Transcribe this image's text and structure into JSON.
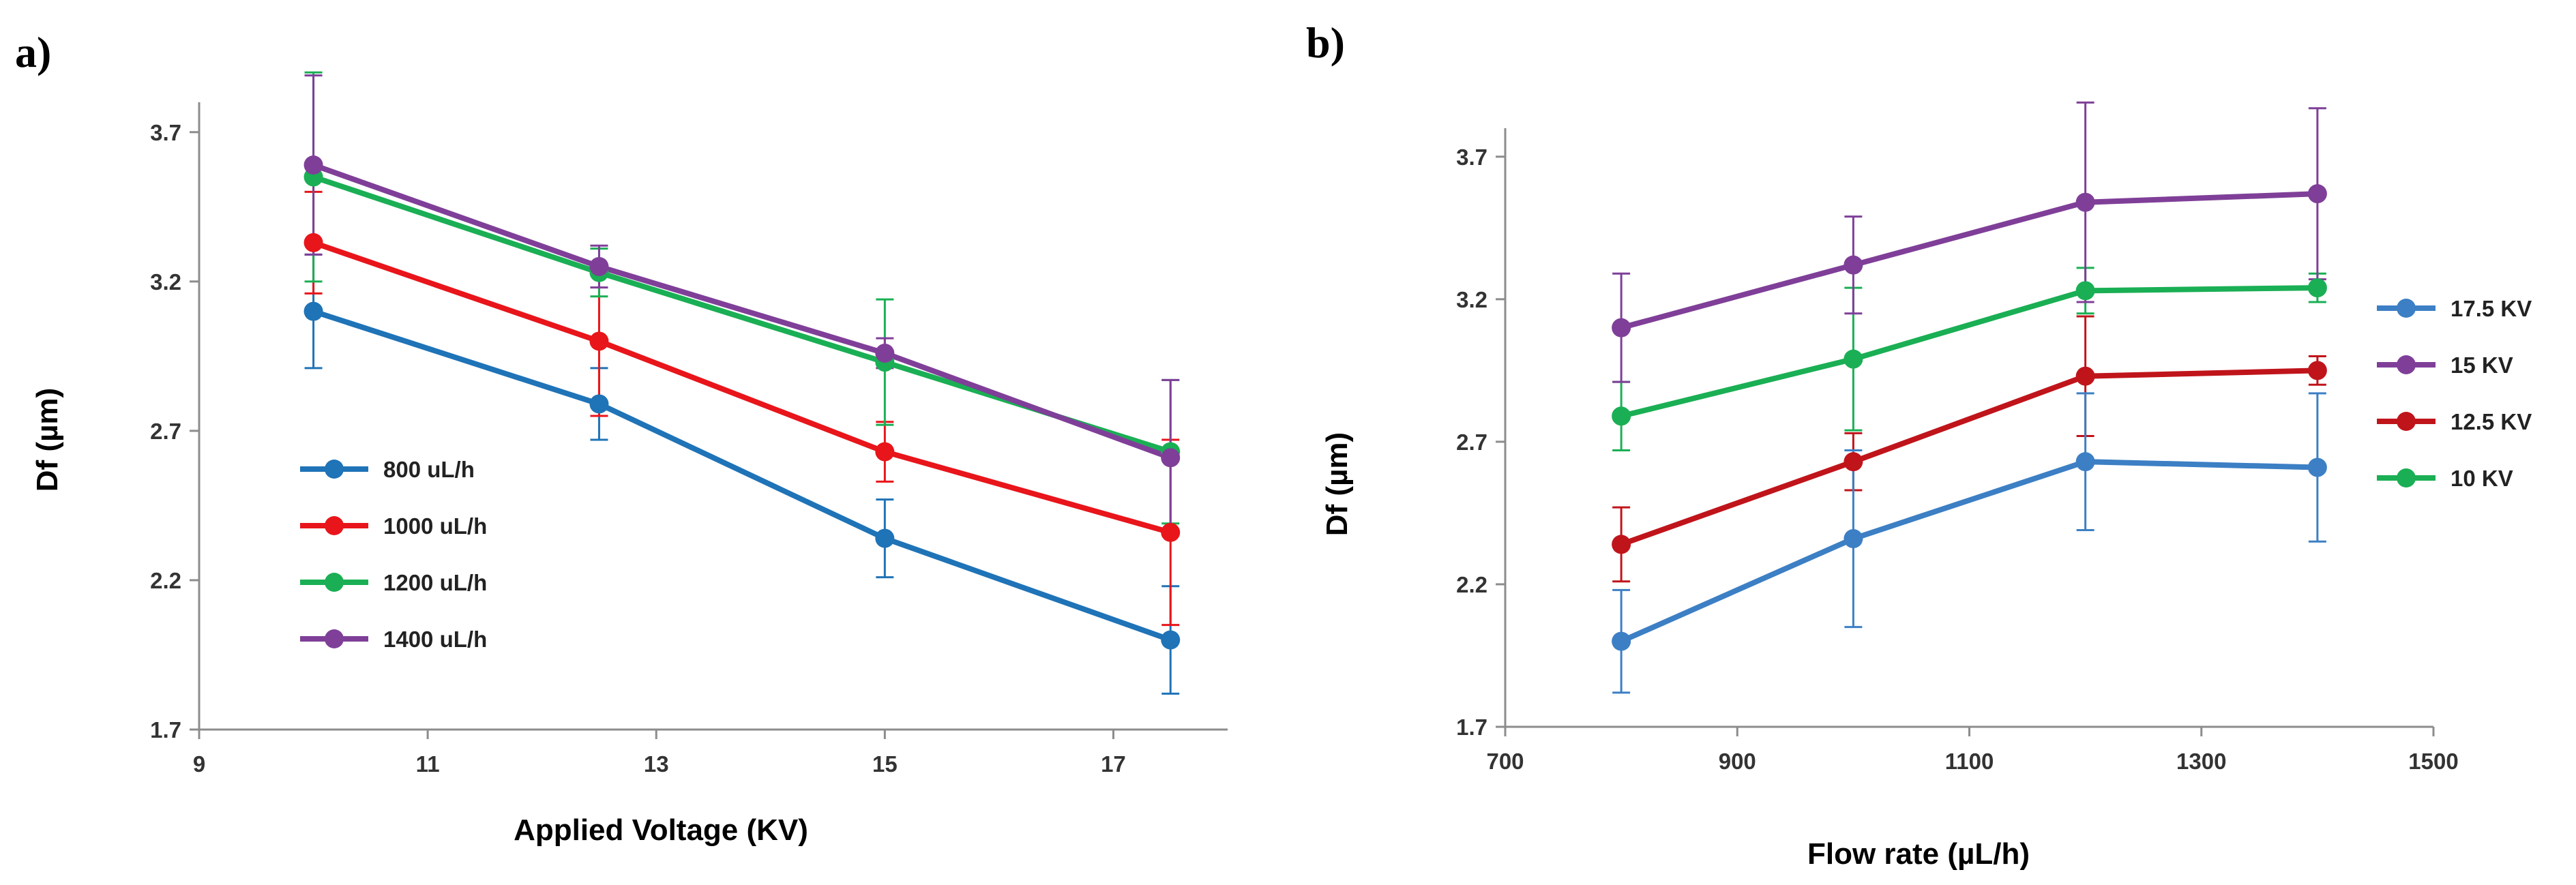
{
  "chart_data": [
    {
      "type": "line",
      "panel_label": "a)",
      "title": "",
      "xlabel": "Applied Voltage (KV)",
      "ylabel": "Df (µm)",
      "xlim": [
        9,
        18
      ],
      "ylim": [
        1.7,
        3.8
      ],
      "x_ticks": [
        9,
        11,
        13,
        15,
        17
      ],
      "y_ticks": [
        1.7,
        2.2,
        2.7,
        3.2,
        3.7
      ],
      "x_tick_labels": [
        "9",
        "11",
        "13",
        "15",
        "17"
      ],
      "y_tick_labels": [
        "1.7",
        "2.2",
        "2.7",
        "3.2",
        "3.7"
      ],
      "grid": false,
      "legend_position": "center-left",
      "x": [
        10,
        12.5,
        15,
        17.5
      ],
      "series": [
        {
          "name": "800 uL/h",
          "color": "#1f73b7",
          "values": [
            3.1,
            2.79,
            2.34,
            2.0
          ],
          "errors": [
            0.19,
            0.12,
            0.13,
            0.18
          ]
        },
        {
          "name": "1000 uL/h",
          "color": "#e8151b",
          "values": [
            3.33,
            3.0,
            2.63,
            2.36
          ],
          "errors": [
            0.17,
            0.25,
            0.1,
            0.31
          ]
        },
        {
          "name": "1200 uL/h",
          "color": "#1aaf54",
          "values": [
            3.55,
            3.23,
            2.93,
            2.63
          ],
          "errors": [
            0.35,
            0.08,
            0.21,
            0.24
          ]
        },
        {
          "name": "1400 uL/h",
          "color": "#7f3f98",
          "values": [
            3.59,
            3.25,
            2.96,
            2.61
          ],
          "errors": [
            0.3,
            0.07,
            0.05,
            0.26
          ]
        }
      ]
    },
    {
      "type": "line",
      "panel_label": "b)",
      "title": "",
      "xlabel": "Flow rate (µL/h)",
      "ylabel": "Df (µm)",
      "xlim": [
        700,
        1500
      ],
      "ylim": [
        1.7,
        3.8
      ],
      "x_ticks": [
        700,
        900,
        1100,
        1300,
        1500
      ],
      "y_ticks": [
        1.7,
        2.2,
        2.7,
        3.2,
        3.7
      ],
      "x_tick_labels": [
        "700",
        "900",
        "1100",
        "1300",
        "1500"
      ],
      "y_tick_labels": [
        "1.7",
        "2.2",
        "2.7",
        "3.2",
        "3.7"
      ],
      "grid": false,
      "legend_position": "right",
      "legend_order": [
        "17.5 KV",
        "15 KV",
        "12.5 KV",
        "10 KV"
      ],
      "x": [
        800,
        1000,
        1200,
        1400
      ],
      "series": [
        {
          "name": "10 KV",
          "color": "#1aaf54",
          "values": [
            2.79,
            2.99,
            3.23,
            3.24
          ],
          "errors": [
            0.12,
            0.25,
            0.08,
            0.05
          ]
        },
        {
          "name": "12.5 KV",
          "color": "#c0141b",
          "values": [
            2.34,
            2.63,
            2.93,
            2.95
          ],
          "errors": [
            0.13,
            0.1,
            0.21,
            0.05
          ]
        },
        {
          "name": "15 KV",
          "color": "#7f3f98",
          "values": [
            3.1,
            3.32,
            3.54,
            3.57
          ],
          "errors": [
            0.19,
            0.17,
            0.35,
            0.3
          ]
        },
        {
          "name": "17.5 KV",
          "color": "#3c7fc4",
          "values": [
            2.0,
            2.36,
            2.63,
            2.61
          ],
          "errors": [
            0.18,
            0.31,
            0.24,
            0.26
          ]
        }
      ]
    }
  ]
}
